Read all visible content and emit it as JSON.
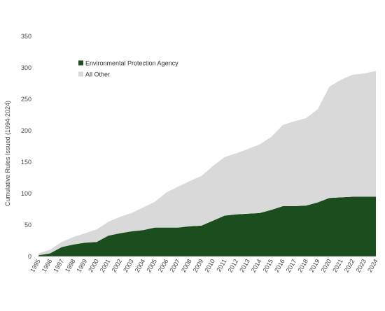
{
  "chart_data": {
    "type": "area",
    "stacked": true,
    "title": "",
    "xlabel": "",
    "ylabel": "Cumulative Rules Issued (1994-2024)",
    "ylim": [
      0,
      350
    ],
    "yticks": [
      0,
      50,
      100,
      150,
      200,
      250,
      300,
      350
    ],
    "grid": false,
    "legend_position": "top-left",
    "x": [
      "1995",
      "1996",
      "1997",
      "1998",
      "1999",
      "2000",
      "2001",
      "2002",
      "2003",
      "2004",
      "2005",
      "2006",
      "2007",
      "2008",
      "2009",
      "2010",
      "2011",
      "2012",
      "2013",
      "2014",
      "2015",
      "2016",
      "2017",
      "2018",
      "2019",
      "2020",
      "2021",
      "2022",
      "2023",
      "2024"
    ],
    "series": [
      {
        "name": "Environmental Protection Agency",
        "color": "#1b4d1e",
        "values": [
          2,
          5,
          15,
          19,
          22,
          23,
          33,
          37,
          40,
          42,
          46,
          46,
          46,
          48,
          49,
          57,
          65,
          67,
          68,
          69,
          74,
          80,
          80,
          81,
          86,
          93,
          94,
          95,
          95,
          95
        ]
      },
      {
        "name": "All Other",
        "color": "#d9d9d9",
        "values": [
          3,
          6,
          8,
          12,
          15,
          20,
          22,
          26,
          29,
          36,
          41,
          56,
          65,
          72,
          79,
          87,
          93,
          97,
          103,
          109,
          116,
          129,
          135,
          139,
          148,
          177,
          187,
          194,
          196,
          200
        ]
      }
    ]
  }
}
